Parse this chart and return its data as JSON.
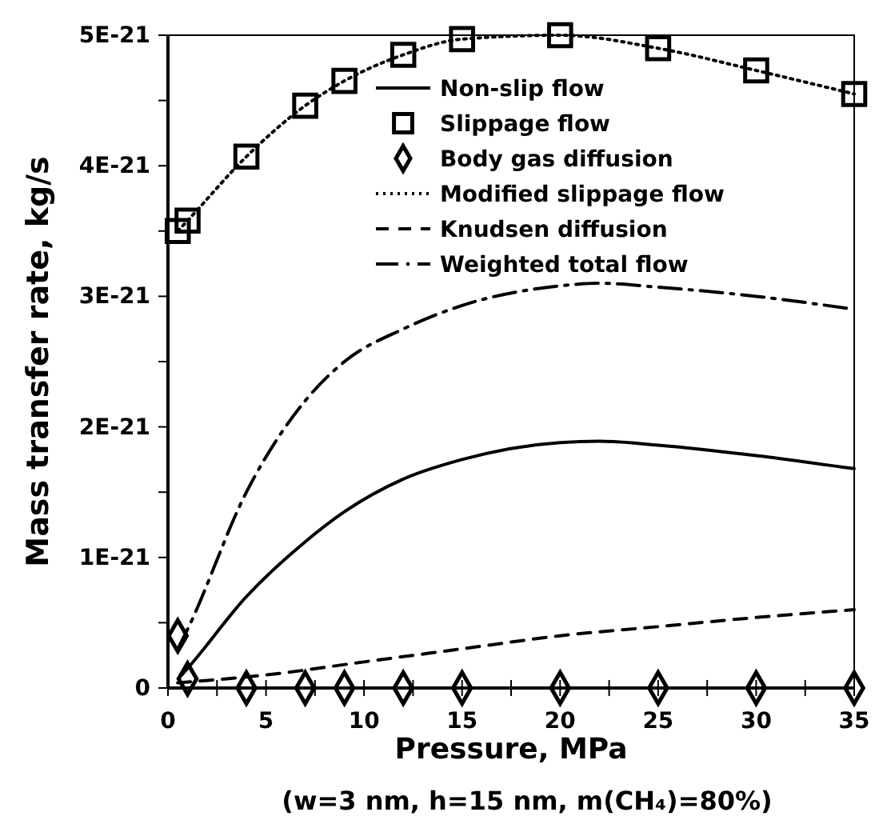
{
  "chart_data": {
    "type": "line",
    "xlabel": "Pressure, MPa",
    "ylabel": "Mass transfer rate, kg/s",
    "annotations": [
      "(w=3 nm, h=15 nm, m(CH₄)=80%)"
    ],
    "xlim": [
      0,
      35
    ],
    "ylim": [
      0,
      5e-21
    ],
    "xticks": [
      0,
      {
        "value": 2.5,
        "label": null
      },
      5,
      {
        "value": 7.5,
        "label": null
      },
      10,
      {
        "value": 12.5,
        "label": null
      },
      15,
      {
        "value": 17.5,
        "label": null
      },
      20,
      {
        "value": 22.5,
        "label": null
      },
      25,
      {
        "value": 27.5,
        "label": null
      },
      30,
      {
        "value": 32.5,
        "label": null
      },
      35
    ],
    "yticks": [
      0,
      {
        "value": 5e-22,
        "label": null
      },
      {
        "value": 1e-21,
        "label": "1E-21"
      },
      {
        "value": 1.5e-21,
        "label": null
      },
      {
        "value": 2e-21,
        "label": "2E-21"
      },
      {
        "value": 2.5e-21,
        "label": null
      },
      {
        "value": 3e-21,
        "label": "3E-21"
      },
      {
        "value": 3.5e-21,
        "label": null
      },
      {
        "value": 4e-21,
        "label": "4E-21"
      },
      {
        "value": 4.5e-21,
        "label": null
      },
      {
        "value": 5e-21,
        "label": "5E-21"
      }
    ],
    "grid": false,
    "legend": "top right",
    "series": [
      {
        "name": "Non-slip flow",
        "line_style": "solid",
        "color": "#000000",
        "x": [
          0.7,
          1,
          4,
          7,
          9,
          12,
          15,
          20,
          22,
          25,
          30,
          35
        ],
        "values": [
          1e-22,
          1.5e-22,
          7e-22,
          1.12e-21,
          1.35e-21,
          1.6e-21,
          1.75e-21,
          1.88e-21,
          1.89e-21,
          1.86e-21,
          1.78e-21,
          1.68e-21
        ]
      },
      {
        "name": "Slippage flow",
        "type": "scatter",
        "marker": "square",
        "color": "#000000",
        "x": [
          0.5,
          1,
          4,
          7,
          9,
          12,
          15,
          20,
          25,
          30,
          35
        ],
        "values": [
          3.5e-21,
          3.58e-21,
          4.07e-21,
          4.46e-21,
          4.65e-21,
          4.85e-21,
          4.97e-21,
          5e-21,
          4.9e-21,
          4.73e-21,
          4.55e-21
        ]
      },
      {
        "name": "Body gas diffusion",
        "type": "scatter",
        "marker": "diamond",
        "color": "#000000",
        "x": [
          0.5,
          1,
          4,
          7,
          9,
          12,
          15,
          20,
          25,
          30,
          35
        ],
        "values": [
          4e-22,
          7e-23,
          0,
          0,
          0,
          0,
          0,
          0,
          0,
          0,
          0
        ]
      },
      {
        "name": "Modified slippage flow",
        "line_style": "dotted",
        "color": "#000000",
        "x": [
          0.5,
          1,
          4,
          7,
          9,
          12,
          15,
          20,
          25,
          30,
          35
        ],
        "values": [
          3.5e-21,
          3.58e-21,
          4.07e-21,
          4.46e-21,
          4.65e-21,
          4.85e-21,
          4.97e-21,
          5e-21,
          4.9e-21,
          4.73e-21,
          4.55e-21
        ]
      },
      {
        "name": "Knudsen diffusion",
        "line_style": "dashed",
        "color": "#000000",
        "x": [
          0.5,
          5,
          10,
          15,
          20,
          25,
          30,
          35
        ],
        "values": [
          4e-23,
          1e-22,
          2e-22,
          3e-22,
          4e-22,
          4.7e-22,
          5.4e-22,
          6e-22
        ]
      },
      {
        "name": "Weighted total flow",
        "line_style": "dashdot",
        "color": "#000000",
        "x": [
          0.5,
          1,
          4,
          7,
          9,
          12,
          15,
          20,
          22,
          25,
          30,
          35
        ],
        "values": [
          3e-22,
          4.5e-22,
          1.5e-21,
          2.2e-21,
          2.5e-21,
          2.75e-21,
          2.93e-21,
          3.08e-21,
          3.1e-21,
          3.07e-21,
          3e-21,
          2.9e-21
        ]
      }
    ]
  }
}
